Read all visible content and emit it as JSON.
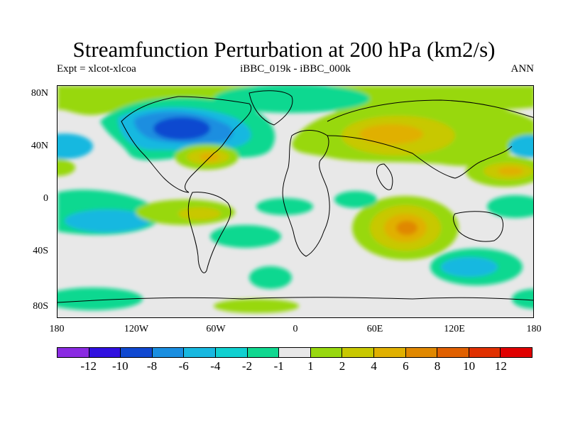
{
  "title": "Streamfunction Perturbation at 200 hPa (km2/s)",
  "subtitle_left": "Expt = xlcot-xlcoa",
  "subtitle_center": "iBBC_019k - iBBC_000k",
  "subtitle_right": "ANN",
  "map": {
    "background_color": "#e8e8e8",
    "lat_labels": [
      "80N",
      "40N",
      "0",
      "40S",
      "80S"
    ],
    "lon_labels": [
      "180",
      "120W",
      "60W",
      "0",
      "60E",
      "120E",
      "180"
    ]
  },
  "colorbar": {
    "colors": [
      "#8a2be2",
      "#3010e0",
      "#1048d0",
      "#1a8ee0",
      "#18b8e0",
      "#10d0d0",
      "#10d890",
      "#e8e8e8",
      "#98d810",
      "#c8c800",
      "#e0b000",
      "#e08800",
      "#e06000",
      "#e03000",
      "#e00000"
    ],
    "labels": [
      "-12",
      "-10",
      "-8",
      "-6",
      "-4",
      "-2",
      "-1",
      "1",
      "2",
      "4",
      "6",
      "8",
      "10",
      "12"
    ]
  }
}
